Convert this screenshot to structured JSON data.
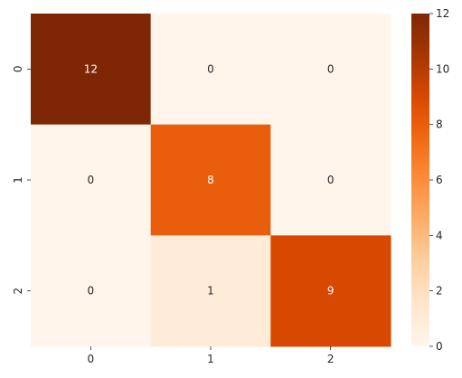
{
  "chart_data": {
    "type": "heatmap",
    "x_categories": [
      "0",
      "1",
      "2"
    ],
    "y_categories": [
      "0",
      "1",
      "2"
    ],
    "values": [
      [
        12,
        0,
        0
      ],
      [
        0,
        8,
        0
      ],
      [
        0,
        1,
        9
      ]
    ],
    "cell_labels": [
      [
        "12",
        "0",
        "0"
      ],
      [
        "0",
        "8",
        "0"
      ],
      [
        "0",
        "1",
        "9"
      ]
    ],
    "colorbar": {
      "min": 0,
      "max": 12,
      "ticks": [
        "0",
        "2",
        "4",
        "6",
        "8",
        "10",
        "12"
      ]
    },
    "colormap": "Oranges",
    "colormap_low": "#fff5eb",
    "colormap_high": "#7f2704",
    "annotation_color_light": "#ffffff",
    "annotation_color_dark": "#262626",
    "title": "",
    "xlabel": "",
    "ylabel": ""
  }
}
